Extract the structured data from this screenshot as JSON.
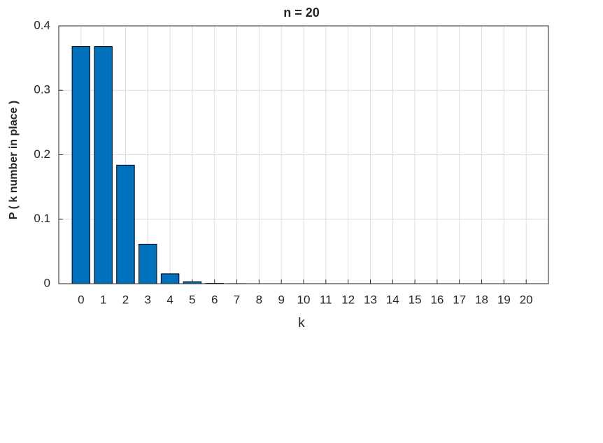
{
  "chart_data": {
    "type": "bar",
    "title": "n = 20",
    "x_label": "k",
    "y_label": "P ( k  number in place )",
    "x": [
      0,
      1,
      2,
      3,
      4,
      5,
      6,
      7,
      8,
      9,
      10,
      11,
      12,
      13,
      14,
      15,
      16,
      17,
      18,
      19,
      20
    ],
    "values": [
      0.3679,
      0.3679,
      0.1839,
      0.0613,
      0.0153,
      0.0031,
      0.0005,
      0.0001,
      0,
      0,
      0,
      0,
      0,
      0,
      0,
      0,
      0,
      0,
      0,
      0,
      0
    ],
    "color": "#0072bd",
    "xlim": [
      -1,
      21
    ],
    "xticks": [
      0,
      1,
      2,
      3,
      4,
      5,
      6,
      7,
      8,
      9,
      10,
      11,
      12,
      13,
      14,
      15,
      16,
      17,
      18,
      19,
      20
    ],
    "ylim": [
      0,
      0.4
    ],
    "yticks": [
      0,
      0.1,
      0.2,
      0.3,
      0.4
    ],
    "grid": true
  }
}
